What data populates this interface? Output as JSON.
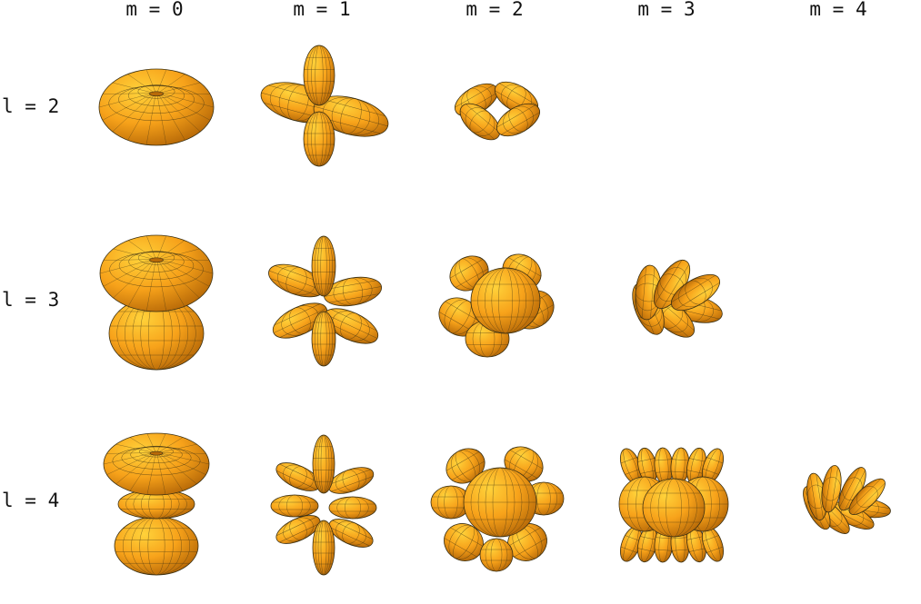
{
  "column_labels": [
    "m = 0",
    "m = 1",
    "m = 2",
    "m = 3",
    "m = 4"
  ],
  "row_labels": [
    "l = 2",
    "l = 3",
    "l = 4"
  ],
  "colors": {
    "surface_light": "#ffd23a",
    "surface_mid": "#f7a21a",
    "surface_dark": "#b86a08",
    "mesh_line": "#3b3013",
    "background": "#ffffff"
  },
  "grid": [
    {
      "l": 2,
      "cells": [
        {
          "m": 0,
          "shape": "torus"
        },
        {
          "m": 1,
          "shape": "four-lobe-tilted"
        },
        {
          "m": 2,
          "shape": "four-lobe-flat"
        },
        {
          "m": 3,
          "shape": null
        },
        {
          "m": 4,
          "shape": null
        }
      ]
    },
    {
      "l": 3,
      "cells": [
        {
          "m": 0,
          "shape": "torus-with-lower-cone"
        },
        {
          "m": 1,
          "shape": "six-lobe-star"
        },
        {
          "m": 2,
          "shape": "clover-cluster"
        },
        {
          "m": 3,
          "shape": "six-lobe-flat"
        },
        {
          "m": 4,
          "shape": null
        }
      ]
    },
    {
      "l": 4,
      "cells": [
        {
          "m": 0,
          "shape": "cup-with-rings"
        },
        {
          "m": 1,
          "shape": "eight-lobe-star"
        },
        {
          "m": 2,
          "shape": "eight-lobe-cluster"
        },
        {
          "m": 3,
          "shape": "spiky-cluster"
        },
        {
          "m": 4,
          "shape": "eight-lobe-flat"
        }
      ]
    }
  ]
}
